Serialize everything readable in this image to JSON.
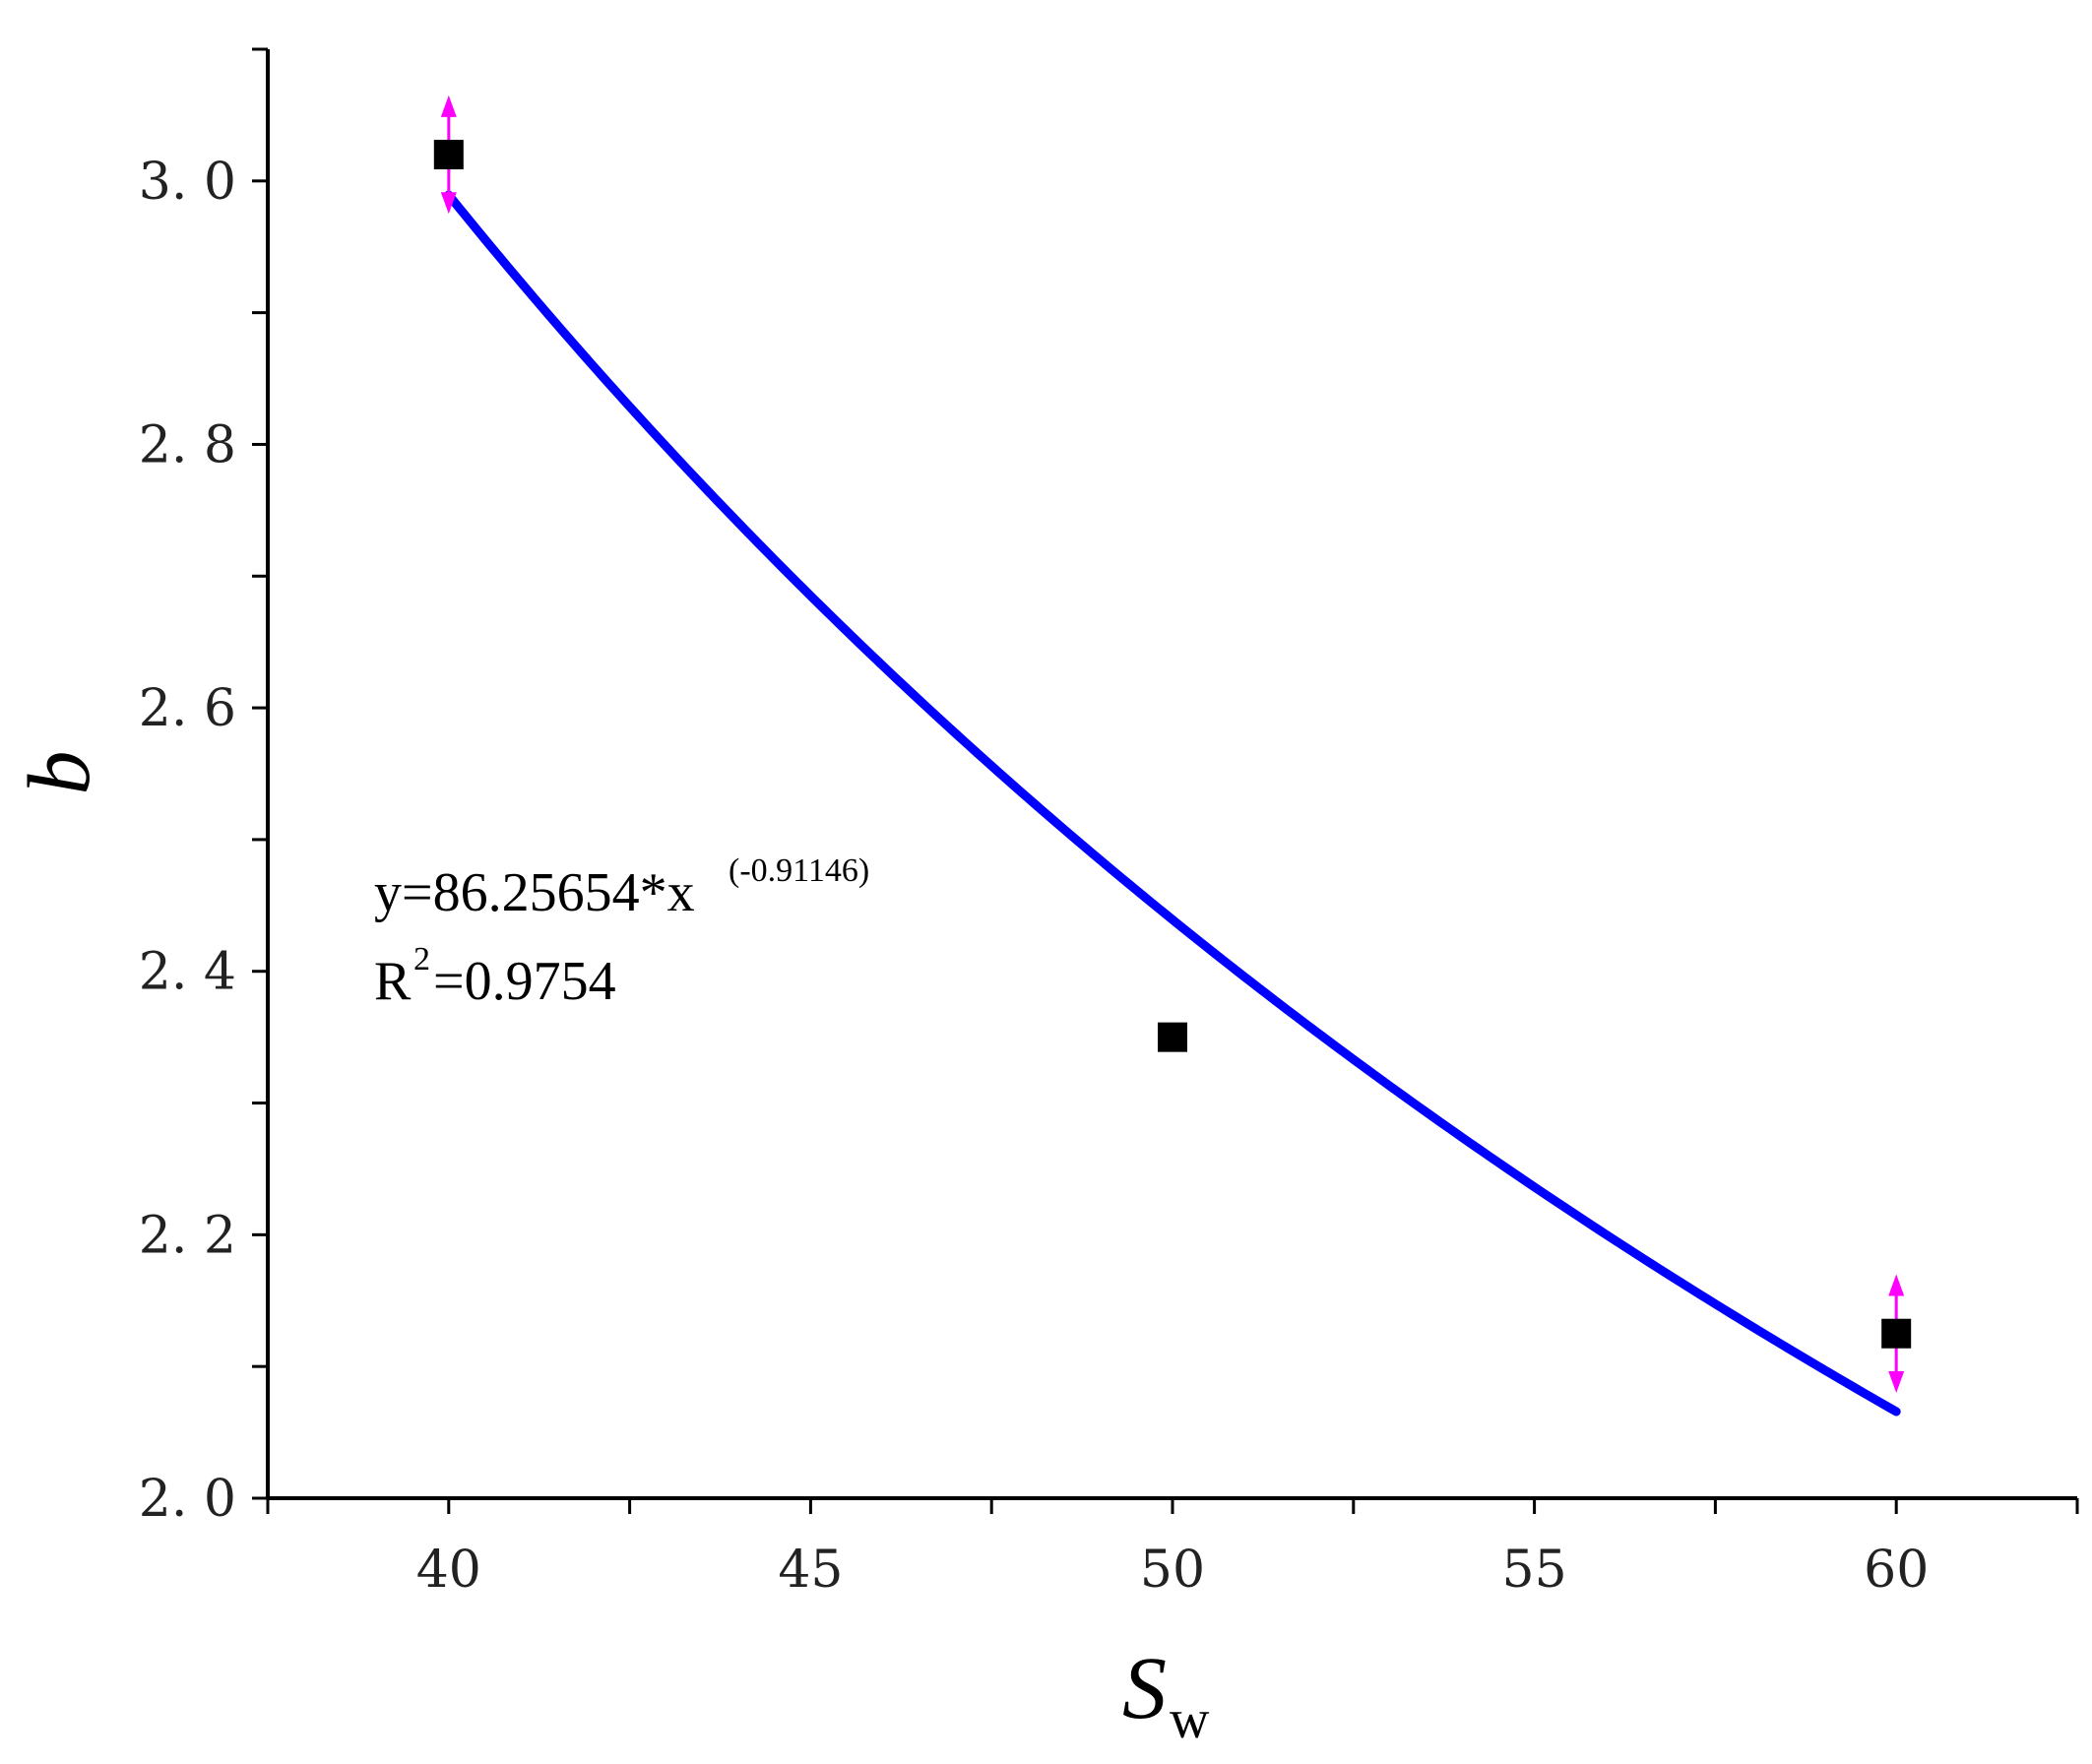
{
  "chart_data": {
    "type": "scatter",
    "x_label": {
      "main": "S",
      "sub": "w"
    },
    "y_label": "b",
    "xlim": [
      37.5,
      62.5
    ],
    "ylim": [
      2.0,
      3.1
    ],
    "x_ticks": [
      40,
      45,
      50,
      55,
      60
    ],
    "x_tick_labels": [
      "40",
      "45",
      "50",
      "55",
      "60"
    ],
    "y_ticks": [
      2.0,
      2.2,
      2.4,
      2.6,
      2.8,
      3.0
    ],
    "y_tick_labels": [
      "2. 0",
      "2. 2",
      "2. 4",
      "2. 6",
      "2. 8",
      "3. 0"
    ],
    "points": [
      {
        "x": 40,
        "y": 3.02,
        "err": 0.045
      },
      {
        "x": 50,
        "y": 2.35,
        "err": 0
      },
      {
        "x": 60,
        "y": 2.125,
        "err": 0.045
      }
    ],
    "fit": {
      "coef": 86.25654,
      "exponent": -0.91146,
      "x_range": [
        40,
        60
      ],
      "color": "#0000ff"
    },
    "annotation": {
      "equation": "y=86.25654*x",
      "equation_sup": "(-0.91146)",
      "r2_prefix": "R",
      "r2_sup": "2",
      "r2_value": "=0.9754"
    },
    "colors": {
      "points": "#000000",
      "error_bars": "#ff00ff",
      "fit_line": "#0000ff",
      "axes": "#000000"
    }
  }
}
